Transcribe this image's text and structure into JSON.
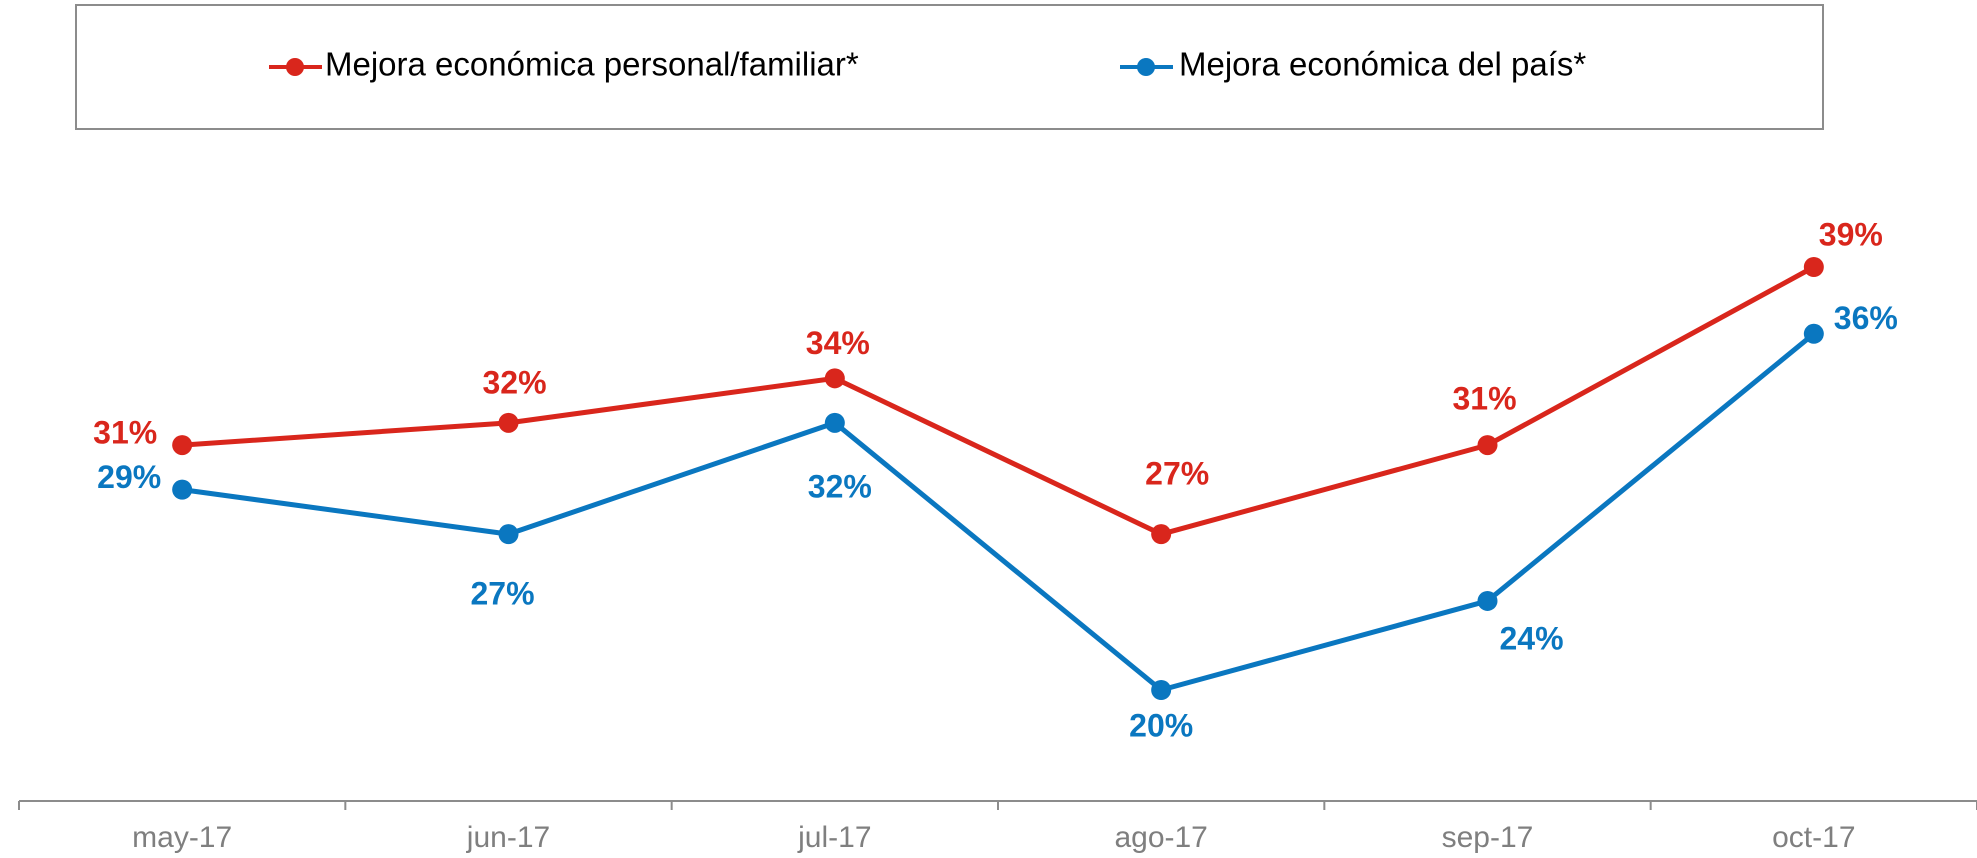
{
  "chart_data": {
    "type": "line",
    "categories": [
      "may-17",
      "jun-17",
      "jul-17",
      "ago-17",
      "sep-17",
      "oct-17"
    ],
    "series": [
      {
        "name": "Mejora económica personal/familiar*",
        "color": "#d9261c",
        "values": [
          31,
          32,
          34,
          27,
          31,
          39
        ],
        "value_labels": [
          "31%",
          "32%",
          "34%",
          "27%",
          "31%",
          "39%"
        ]
      },
      {
        "name": "Mejora económica del país*",
        "color": "#0a77c0",
        "values": [
          29,
          27,
          32,
          20,
          24,
          36
        ],
        "value_labels": [
          "29%",
          "27%",
          "32%",
          "20%",
          "24%",
          "36%"
        ]
      }
    ]
  }
}
